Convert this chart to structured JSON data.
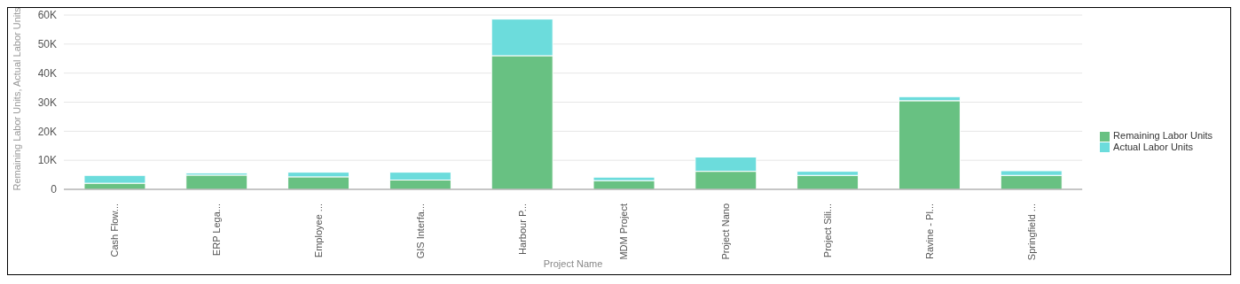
{
  "chart_data": {
    "type": "bar",
    "stacked": true,
    "xlabel": "Project Name",
    "ylabel": "Remaining Labor Units, Actual Labor Units",
    "categories": [
      "Cash Flow...",
      "ERP Lega...",
      "Employee ...",
      "GIS Interfa...",
      "Harbour P...",
      "MDM Project",
      "Project Nano",
      "Project Sili...",
      "Ravine - Pl...",
      "Springfield ..."
    ],
    "series": [
      {
        "name": "Remaining Labor Units",
        "color": "#68c182",
        "values": [
          2100,
          4900,
          4300,
          3200,
          46000,
          3000,
          6200,
          4800,
          30500,
          4800
        ]
      },
      {
        "name": "Actual Labor Units",
        "color": "#6cdcdc",
        "values": [
          2700,
          700,
          1600,
          2700,
          12600,
          1200,
          4900,
          1400,
          1400,
          1600
        ]
      }
    ],
    "ylim": [
      0,
      60000
    ],
    "yticks": [
      0,
      {
        "value": 10000,
        "label": "10K"
      },
      {
        "value": 20000,
        "label": "20K"
      },
      {
        "value": 30000,
        "label": "30K"
      },
      {
        "value": 40000,
        "label": "40K"
      },
      {
        "value": 50000,
        "label": "50K"
      },
      {
        "value": 60000,
        "label": "60K"
      }
    ],
    "grid": "y",
    "legend": "right"
  }
}
